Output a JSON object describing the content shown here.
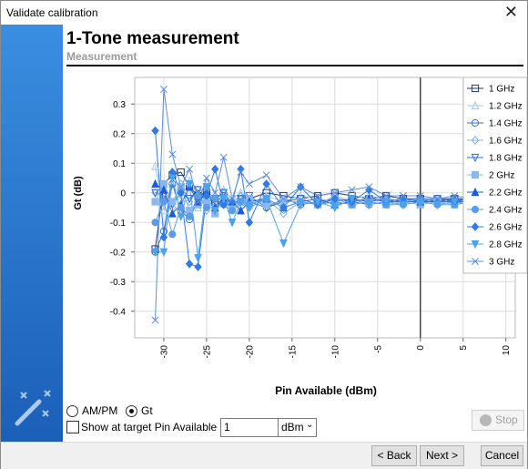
{
  "window": {
    "title": "Validate calibration"
  },
  "header": {
    "title": "1-Tone measurement",
    "subtitle": "Measurement"
  },
  "chart_data": {
    "type": "line",
    "x_label": "Pin Available (dBm)",
    "y_label": "Gt (dB)",
    "x": [
      -31,
      -30,
      -29,
      -28,
      -27,
      -26,
      -25,
      -24,
      -23,
      -22,
      -21,
      -20,
      -18,
      -16,
      -14,
      -12,
      -10,
      -8,
      -6,
      -4,
      -2,
      0,
      2,
      4,
      6,
      8,
      10
    ],
    "xlim": [
      -33.4,
      11.1
    ],
    "xticks": [
      -30,
      -25,
      -20,
      -15,
      -10,
      -5,
      0,
      5,
      10
    ],
    "ylim": [
      -0.49,
      0.39
    ],
    "yticks": [
      -0.4,
      -0.3,
      -0.2,
      -0.1,
      0,
      0.1,
      0.2,
      0.3
    ],
    "grid": true,
    "legend": "upper right",
    "series": [
      {
        "name": "1 GHz",
        "color": "#1f3a6e",
        "marker": "square",
        "filled": false,
        "values": [
          -0.19,
          0.03,
          0.06,
          0.07,
          0.02,
          -0.01,
          0.0,
          -0.03,
          -0.01,
          -0.04,
          -0.03,
          -0.02,
          0.0,
          -0.01,
          -0.02,
          -0.01,
          0.0,
          -0.01,
          -0.02,
          -0.01,
          -0.02,
          -0.02,
          -0.02,
          -0.02,
          -0.02,
          -0.02,
          -0.02
        ]
      },
      {
        "name": "1.2 GHz",
        "color": "#9ec8f0",
        "marker": "triangle",
        "filled": false,
        "values": [
          0.09,
          -0.06,
          0.03,
          -0.02,
          0.04,
          -0.05,
          0.02,
          -0.03,
          0.01,
          -0.02,
          0.0,
          -0.04,
          -0.01,
          -0.03,
          -0.01,
          -0.02,
          -0.03,
          -0.02,
          -0.01,
          -0.02,
          -0.03,
          -0.02,
          -0.03,
          -0.02,
          -0.03,
          -0.03,
          -0.03
        ]
      },
      {
        "name": "1.4 GHz",
        "color": "#3a6ec0",
        "marker": "circle",
        "filled": false,
        "values": [
          -0.2,
          -0.13,
          0.03,
          -0.06,
          -0.09,
          -0.02,
          0.01,
          -0.04,
          -0.03,
          -0.05,
          -0.02,
          -0.03,
          -0.05,
          -0.02,
          -0.04,
          -0.03,
          -0.02,
          -0.03,
          -0.04,
          -0.03,
          -0.03,
          -0.03,
          -0.03,
          -0.03,
          -0.03,
          -0.03,
          -0.03
        ]
      },
      {
        "name": "1.6 GHz",
        "color": "#7fb2ea",
        "marker": "diamond",
        "filled": false,
        "values": [
          0.0,
          0.02,
          -0.05,
          0.03,
          -0.03,
          0.01,
          -0.06,
          -0.02,
          0.0,
          -0.03,
          -0.01,
          -0.05,
          -0.02,
          -0.07,
          -0.03,
          -0.04,
          -0.01,
          -0.03,
          -0.02,
          -0.02,
          -0.03,
          -0.02,
          -0.02,
          -0.03,
          -0.02,
          -0.02,
          -0.02
        ]
      },
      {
        "name": "1.8 GHz",
        "color": "#2a6fd8",
        "marker": "triangle-down",
        "filled": false,
        "values": [
          0.0,
          -0.01,
          -0.04,
          0.0,
          -0.02,
          0.01,
          -0.03,
          -0.02,
          0.0,
          -0.04,
          -0.02,
          -0.01,
          -0.05,
          -0.03,
          -0.02,
          -0.04,
          -0.03,
          -0.02,
          -0.03,
          -0.02,
          -0.03,
          -0.03,
          -0.02,
          -0.03,
          -0.03,
          -0.03,
          -0.03
        ]
      },
      {
        "name": "2 GHz",
        "color": "#8ab8ec",
        "marker": "square",
        "filled": true,
        "values": [
          -0.03,
          0.03,
          -0.03,
          0.02,
          -0.06,
          -0.04,
          -0.03,
          -0.07,
          -0.02,
          -0.04,
          -0.03,
          -0.02,
          -0.04,
          -0.03,
          -0.03,
          -0.04,
          -0.02,
          -0.04,
          -0.03,
          -0.04,
          -0.03,
          -0.04,
          -0.03,
          -0.04,
          -0.03,
          -0.03,
          -0.03
        ]
      },
      {
        "name": "2.2 GHz",
        "color": "#1e5bd6",
        "marker": "triangle",
        "filled": true,
        "values": [
          0.03,
          0.01,
          -0.07,
          -0.04,
          0.02,
          -0.03,
          0.0,
          -0.05,
          -0.02,
          -0.03,
          -0.06,
          -0.03,
          -0.02,
          -0.05,
          -0.03,
          -0.02,
          -0.04,
          -0.03,
          -0.02,
          -0.03,
          -0.02,
          -0.03,
          -0.03,
          -0.02,
          -0.03,
          -0.03,
          -0.03
        ]
      },
      {
        "name": "2.4 GHz",
        "color": "#5a9de6",
        "marker": "circle",
        "filled": true,
        "values": [
          -0.1,
          -0.03,
          -0.14,
          -0.05,
          -0.08,
          -0.01,
          -0.05,
          -0.02,
          -0.04,
          -0.06,
          -0.03,
          -0.04,
          -0.02,
          -0.05,
          -0.03,
          -0.04,
          -0.03,
          -0.04,
          -0.03,
          -0.04,
          -0.04,
          -0.03,
          -0.04,
          -0.04,
          -0.03,
          -0.04,
          -0.04
        ]
      },
      {
        "name": "2.6 GHz",
        "color": "#2f7ae8",
        "marker": "diamond",
        "filled": true,
        "values": [
          0.21,
          -0.15,
          0.07,
          0.0,
          -0.24,
          -0.25,
          -0.01,
          0.08,
          -0.04,
          -0.03,
          0.08,
          -0.1,
          0.03,
          -0.05,
          0.02,
          -0.04,
          -0.02,
          -0.03,
          0.01,
          -0.03,
          -0.02,
          -0.02,
          -0.03,
          -0.03,
          -0.02,
          -0.03,
          -0.03
        ]
      },
      {
        "name": "2.8 GHz",
        "color": "#4aa3ee",
        "marker": "triangle-down",
        "filled": true,
        "values": [
          -0.2,
          -0.2,
          0.05,
          -0.08,
          0.03,
          -0.22,
          0.02,
          -0.06,
          -0.02,
          -0.1,
          -0.03,
          -0.05,
          -0.02,
          -0.17,
          -0.04,
          -0.03,
          -0.05,
          -0.02,
          -0.04,
          -0.03,
          -0.04,
          -0.03,
          -0.04,
          -0.03,
          -0.04,
          -0.04,
          -0.04
        ]
      },
      {
        "name": "3 GHz",
        "color": "#5b8fe0",
        "marker": "x",
        "filled": false,
        "values": [
          -0.43,
          0.35,
          0.13,
          0.02,
          0.08,
          -0.03,
          0.05,
          0.0,
          0.12,
          -0.02,
          0.07,
          0.03,
          0.06,
          -0.02,
          0.02,
          -0.01,
          0.0,
          0.01,
          0.02,
          -0.01,
          -0.01,
          -0.01,
          -0.02,
          -0.01,
          -0.02,
          -0.02,
          -0.02
        ]
      }
    ]
  },
  "controls": {
    "radios": [
      {
        "label": "AM/PM",
        "selected": false
      },
      {
        "label": "Gt",
        "selected": true
      }
    ],
    "checkbox": {
      "label": "Show at target Pin Available =",
      "checked": false
    },
    "input": "1",
    "unit": "dBm",
    "stop": "Stop"
  },
  "buttons": [
    "< Back",
    "Next >",
    "Cancel"
  ]
}
